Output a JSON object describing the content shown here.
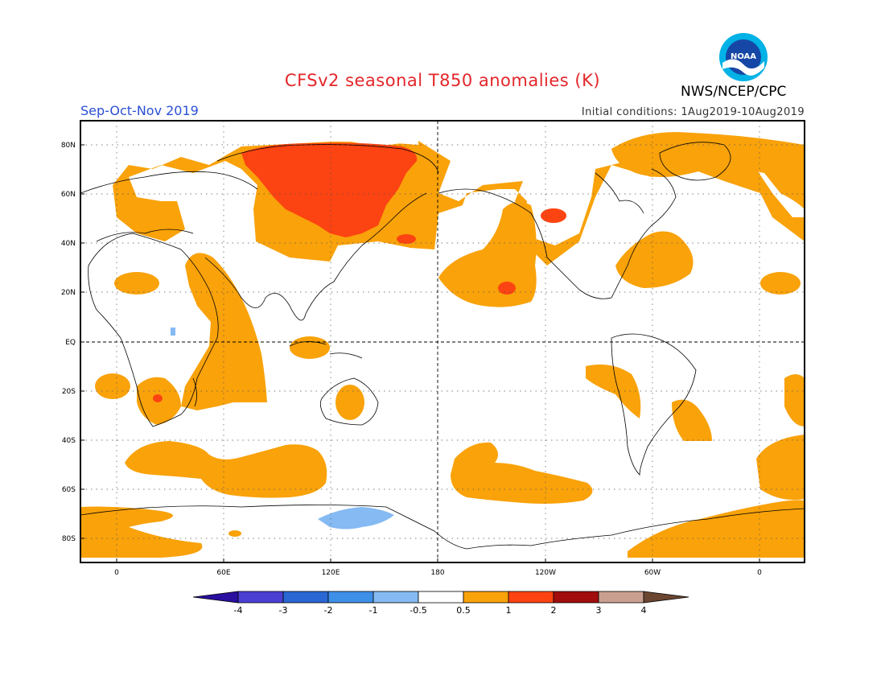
{
  "title": "CFSv2 seasonal T850 anomalies (K)",
  "season": "Sep-Oct-Nov 2019",
  "initial_conditions": "Initial conditions: 1Aug2019-10Aug2019",
  "agency": "NWS/NCEP/CPC",
  "logo_text": "NOAA",
  "map": {
    "lat_labels": [
      "80N",
      "60N",
      "40N",
      "20N",
      "EQ",
      "20S",
      "40S",
      "60S",
      "80S"
    ],
    "lon_labels": [
      "0",
      "60E",
      "120E",
      "180",
      "120W",
      "60W",
      "0"
    ],
    "colorbar": {
      "labels": [
        "-4",
        "-3",
        "-2",
        "-1",
        "-0.5",
        "0.5",
        "1",
        "2",
        "3",
        "4"
      ],
      "colors": [
        "#2a0fa0",
        "#4b3fd2",
        "#2a67d3",
        "#3e8fe8",
        "#85baf2",
        "#ffffff",
        "#f9a20a",
        "#fc4312",
        "#a10d0d",
        "#c9a090",
        "#6b4631"
      ]
    },
    "anomaly_colors": {
      "warm_1": "#f9a20a",
      "warm_2": "#fc4312",
      "cool_1": "#85baf2"
    }
  }
}
